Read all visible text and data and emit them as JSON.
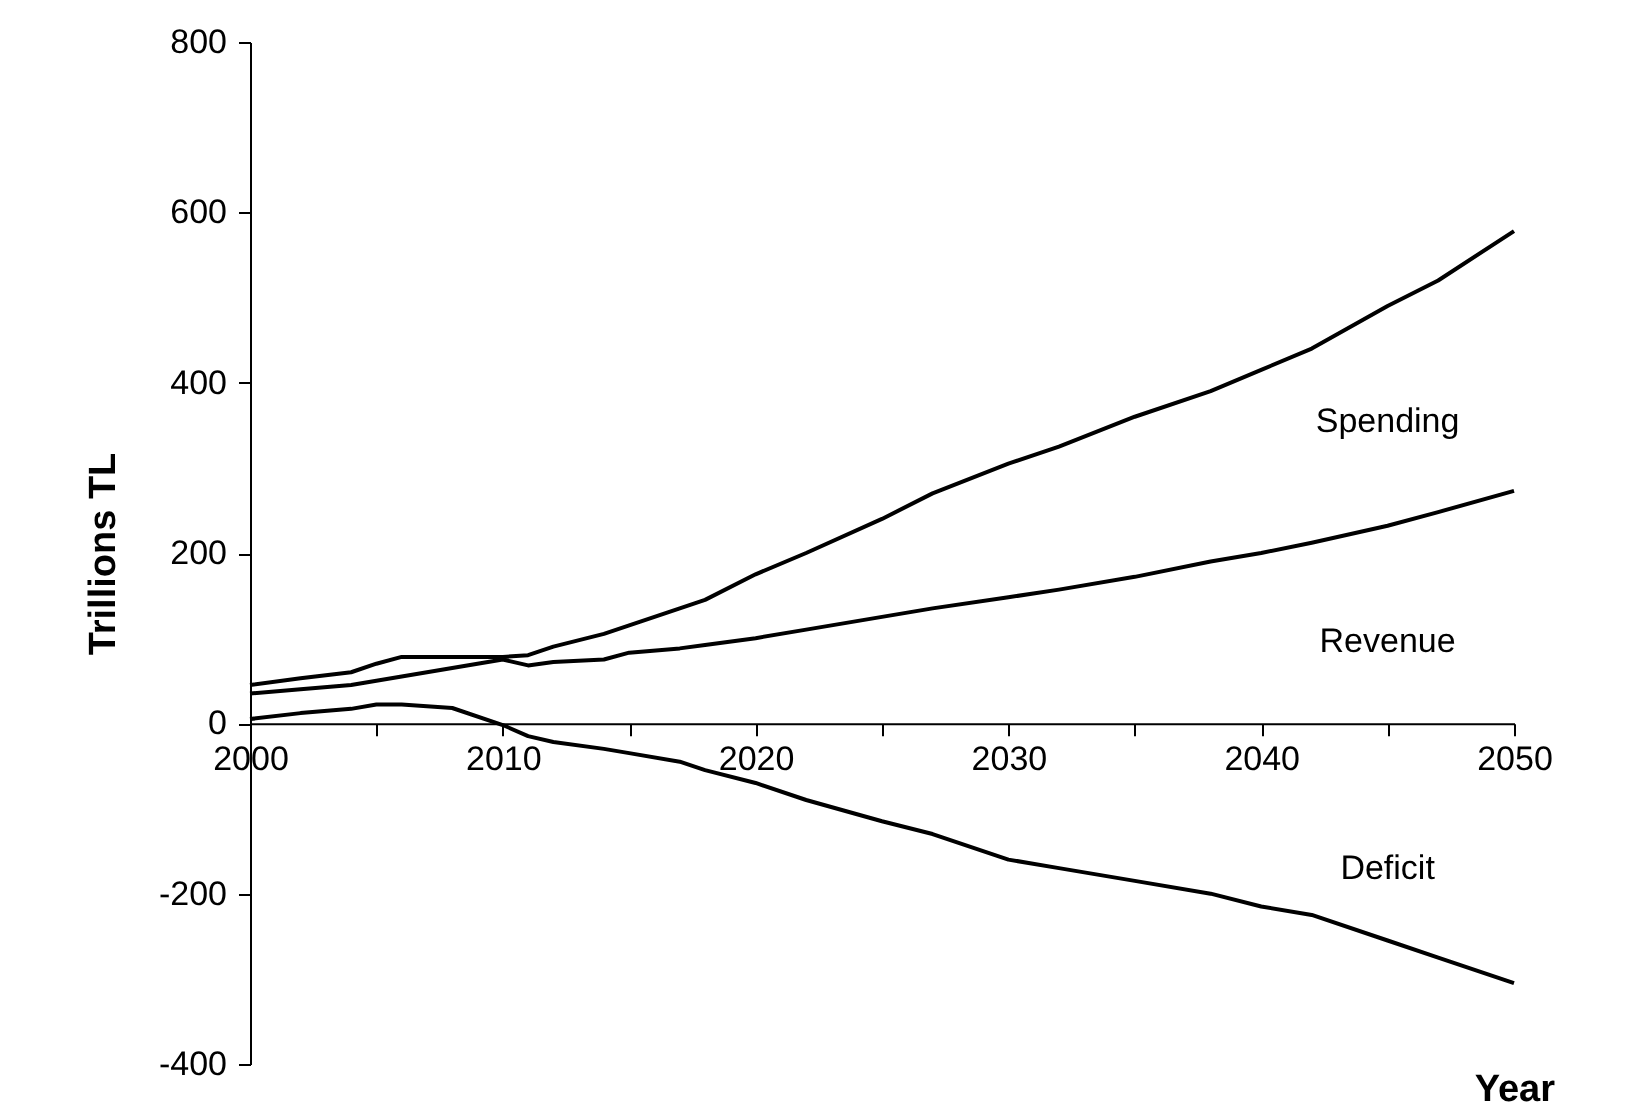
{
  "chart_data": {
    "type": "line",
    "xlabel": "Year",
    "ylabel": "Trillions TL",
    "x": [
      2000,
      2002,
      2004,
      2005,
      2006,
      2008,
      2010,
      2011,
      2012,
      2014,
      2015,
      2017,
      2018,
      2020,
      2022,
      2025,
      2027,
      2030,
      2032,
      2035,
      2038,
      2040,
      2042,
      2045,
      2047,
      2050
    ],
    "series": [
      {
        "name": "Spending",
        "color": "#000000",
        "values": [
          45,
          53,
          60,
          70,
          78,
          78,
          78,
          80,
          90,
          105,
          115,
          135,
          145,
          175,
          200,
          240,
          270,
          305,
          325,
          360,
          390,
          415,
          440,
          490,
          520,
          578
        ]
      },
      {
        "name": "Revenue",
        "color": "#000000",
        "values": [
          35,
          40,
          45,
          50,
          55,
          65,
          75,
          68,
          72,
          75,
          83,
          88,
          92,
          100,
          110,
          125,
          135,
          148,
          157,
          172,
          190,
          200,
          212,
          232,
          248,
          273
        ]
      },
      {
        "name": "Deficit",
        "color": "#000000",
        "values": [
          5,
          12,
          17,
          22,
          22,
          18,
          -2,
          -15,
          -22,
          -30,
          -35,
          -45,
          -55,
          -70,
          -90,
          -115,
          -130,
          -160,
          -170,
          -185,
          -200,
          -215,
          -225,
          -255,
          -275,
          -305
        ]
      }
    ],
    "xlim": [
      2000,
      2050
    ],
    "xticks": [
      2000,
      {
        "value": 2005,
        "label": null
      },
      2010,
      {
        "value": 2015,
        "label": null
      },
      2020,
      {
        "value": 2025,
        "label": null
      },
      2030,
      {
        "value": 2035,
        "label": null
      },
      2040,
      {
        "value": 2045,
        "label": null
      },
      2050
    ],
    "ylim": [
      -400,
      800
    ],
    "yticks": [
      -400,
      -200,
      0,
      200,
      400,
      600,
      800
    ],
    "grid": false,
    "marker": "none",
    "line_style": "solid"
  }
}
